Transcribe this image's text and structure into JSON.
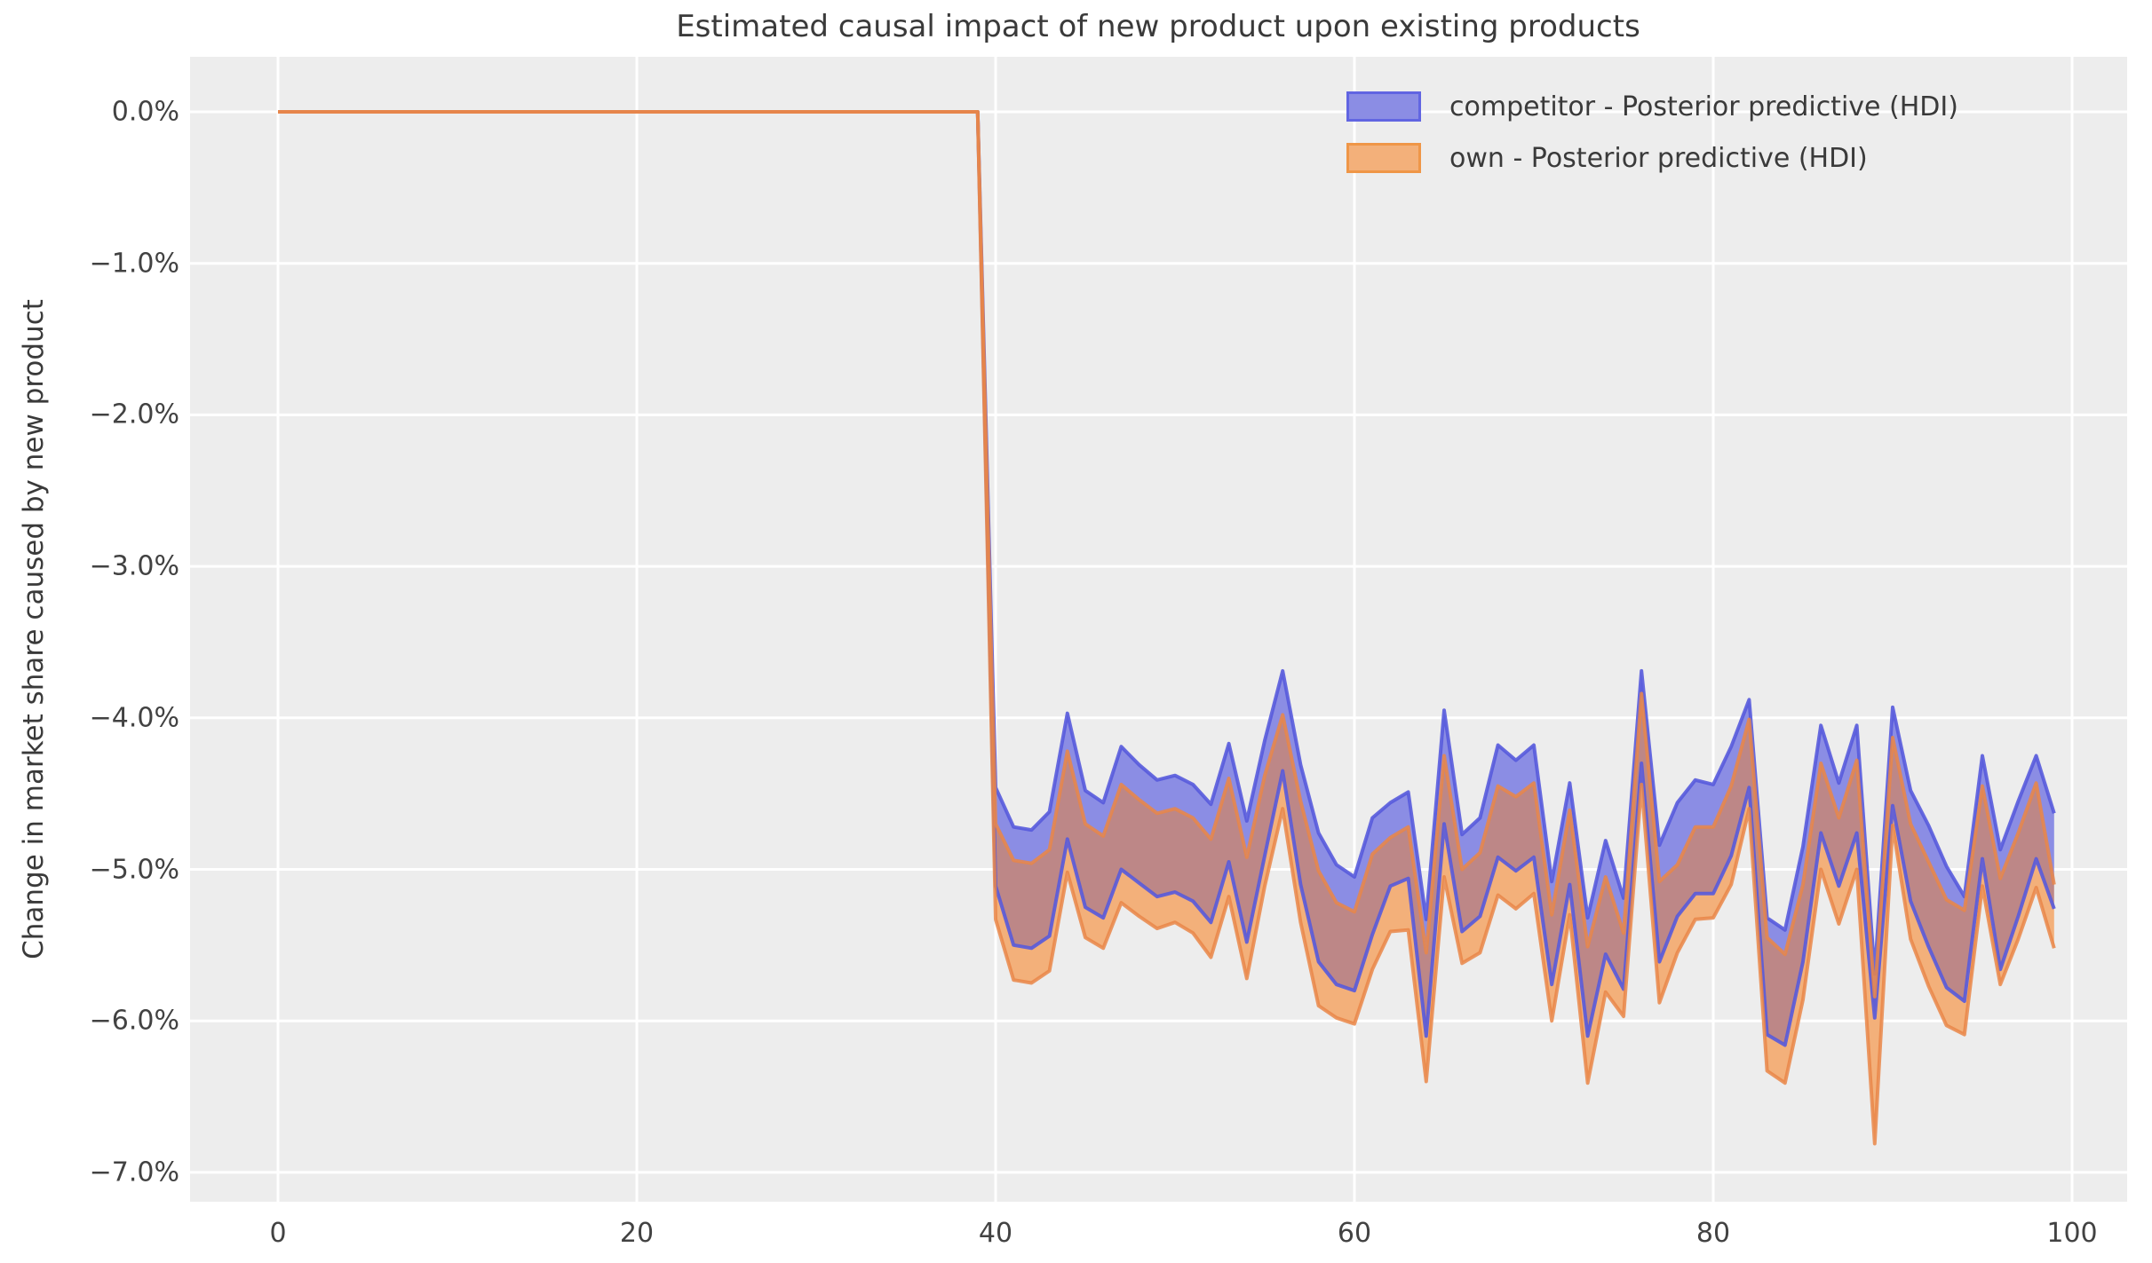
{
  "title": "Estimated causal impact of new product upon existing products",
  "axes": {
    "ylabel": "Change in market share caused by new product",
    "yticks": {
      "values": [
        0,
        -1,
        -2,
        -3,
        -4,
        -5,
        -6,
        -7
      ],
      "labels": [
        "0.0%",
        "−1.0%",
        "−2.0%",
        "−3.0%",
        "−4.0%",
        "−5.0%",
        "−6.0%",
        "−7.0%"
      ]
    },
    "xticks": {
      "values": [
        0,
        20,
        40,
        60,
        80,
        100
      ],
      "labels": [
        "0",
        "20",
        "40",
        "60",
        "80",
        "100"
      ]
    }
  },
  "legend": {
    "items": [
      {
        "label": "competitor - Posterior predictive (HDI)",
        "fill": "#8b8de4",
        "border": "#6165e2"
      },
      {
        "label": "own - Posterior predictive (HDI)",
        "fill": "#f3b07a",
        "border": "#ef9647"
      }
    ]
  },
  "colors": {
    "plot_background": "#ededed",
    "gridline": "#ffffff",
    "band_competitor_fill": "#8b8de4",
    "band_own_fill": "#f3b07a",
    "band_overlap_fill": "#bd8787",
    "edge_competitor": "rgba(86,90,219,0.9)",
    "edge_own": "rgba(233,134,72,0.85)",
    "pre_period_line": "#c4736b",
    "text": "#3a3a3a"
  },
  "chart_data": {
    "type": "area",
    "title": "Estimated causal impact of new product upon existing products",
    "xlabel": "",
    "ylabel": "Change in market share caused by new product",
    "grid": true,
    "legend_position": "upper right",
    "xlim": [
      -4.9,
      103.0
    ],
    "ylim": [
      0.36,
      -7.19
    ],
    "pre_period": {
      "x_start": 0,
      "x_end": 39,
      "value_percent": 0.0
    },
    "x_post_start": 40,
    "x_post": [
      40,
      41,
      42,
      43,
      44,
      45,
      46,
      47,
      48,
      49,
      50,
      51,
      52,
      53,
      54,
      55,
      56,
      57,
      58,
      59,
      60,
      61,
      62,
      63,
      64,
      65,
      66,
      67,
      68,
      69,
      70,
      71,
      72,
      73,
      74,
      75,
      76,
      77,
      78,
      79,
      80,
      81,
      82,
      83,
      84,
      85,
      86,
      87,
      88,
      89,
      90,
      91,
      92,
      93,
      94,
      95,
      96,
      97,
      98,
      99
    ],
    "series": [
      {
        "name": "competitor - Posterior predictive (HDI)",
        "upper": [
          -4.46,
          -4.72,
          -4.74,
          -4.62,
          -3.97,
          -4.48,
          -4.56,
          -4.19,
          -4.31,
          -4.41,
          -4.38,
          -4.44,
          -4.57,
          -4.17,
          -4.68,
          -4.15,
          -3.69,
          -4.31,
          -4.76,
          -4.97,
          -5.05,
          -4.66,
          -4.56,
          -4.49,
          -5.33,
          -3.95,
          -4.77,
          -4.66,
          -4.18,
          -4.28,
          -4.18,
          -5.08,
          -4.43,
          -5.32,
          -4.81,
          -5.19,
          -3.69,
          -4.84,
          -4.56,
          -4.41,
          -4.44,
          -4.19,
          -3.88,
          -5.32,
          -5.4,
          -4.85,
          -4.05,
          -4.43,
          -4.05,
          -5.69,
          -3.93,
          -4.48,
          -4.71,
          -4.98,
          -5.18,
          -4.25,
          -4.87,
          -4.55,
          -4.25,
          -4.63
        ],
        "lower": [
          -5.11,
          -5.5,
          -5.52,
          -5.44,
          -4.8,
          -5.25,
          -5.32,
          -5.0,
          -5.09,
          -5.18,
          -5.15,
          -5.21,
          -5.35,
          -4.95,
          -5.48,
          -4.91,
          -4.35,
          -5.1,
          -5.61,
          -5.76,
          -5.8,
          -5.43,
          -5.11,
          -5.06,
          -6.1,
          -4.7,
          -5.41,
          -5.31,
          -4.92,
          -5.01,
          -4.92,
          -5.76,
          -5.1,
          -6.1,
          -5.56,
          -5.79,
          -4.3,
          -5.61,
          -5.31,
          -5.16,
          -5.16,
          -4.91,
          -4.46,
          -6.09,
          -6.16,
          -5.61,
          -4.76,
          -5.11,
          -4.76,
          -5.98,
          -4.58,
          -5.21,
          -5.51,
          -5.78,
          -5.87,
          -4.93,
          -5.66,
          -5.31,
          -4.93,
          -5.26
        ]
      },
      {
        "name": "own - Posterior predictive (HDI)",
        "upper": [
          -4.7,
          -4.94,
          -4.96,
          -4.87,
          -4.22,
          -4.7,
          -4.78,
          -4.44,
          -4.54,
          -4.63,
          -4.6,
          -4.66,
          -4.8,
          -4.4,
          -4.92,
          -4.38,
          -3.98,
          -4.55,
          -5.01,
          -5.22,
          -5.28,
          -4.9,
          -4.79,
          -4.72,
          -5.55,
          -4.25,
          -5.0,
          -4.89,
          -4.45,
          -4.52,
          -4.43,
          -5.3,
          -4.61,
          -5.51,
          -5.05,
          -5.42,
          -3.84,
          -5.08,
          -4.97,
          -4.72,
          -4.72,
          -4.45,
          -4.01,
          -5.45,
          -5.56,
          -5.1,
          -4.3,
          -4.66,
          -4.28,
          -5.84,
          -4.13,
          -4.7,
          -4.95,
          -5.2,
          -5.27,
          -4.45,
          -5.06,
          -4.76,
          -4.43,
          -5.1
        ],
        "lower": [
          -5.33,
          -5.73,
          -5.75,
          -5.67,
          -5.02,
          -5.45,
          -5.52,
          -5.22,
          -5.31,
          -5.39,
          -5.35,
          -5.42,
          -5.58,
          -5.18,
          -5.72,
          -5.11,
          -4.6,
          -5.35,
          -5.9,
          -5.98,
          -6.02,
          -5.66,
          -5.41,
          -5.4,
          -6.4,
          -5.05,
          -5.62,
          -5.55,
          -5.17,
          -5.26,
          -5.16,
          -6.0,
          -5.3,
          -6.41,
          -5.81,
          -5.97,
          -4.44,
          -5.88,
          -5.55,
          -5.33,
          -5.32,
          -5.1,
          -4.6,
          -6.33,
          -6.41,
          -5.86,
          -5.0,
          -5.36,
          -5.0,
          -6.81,
          -4.71,
          -5.46,
          -5.77,
          -6.03,
          -6.09,
          -5.11,
          -5.76,
          -5.46,
          -5.12,
          -5.52
        ]
      }
    ]
  }
}
